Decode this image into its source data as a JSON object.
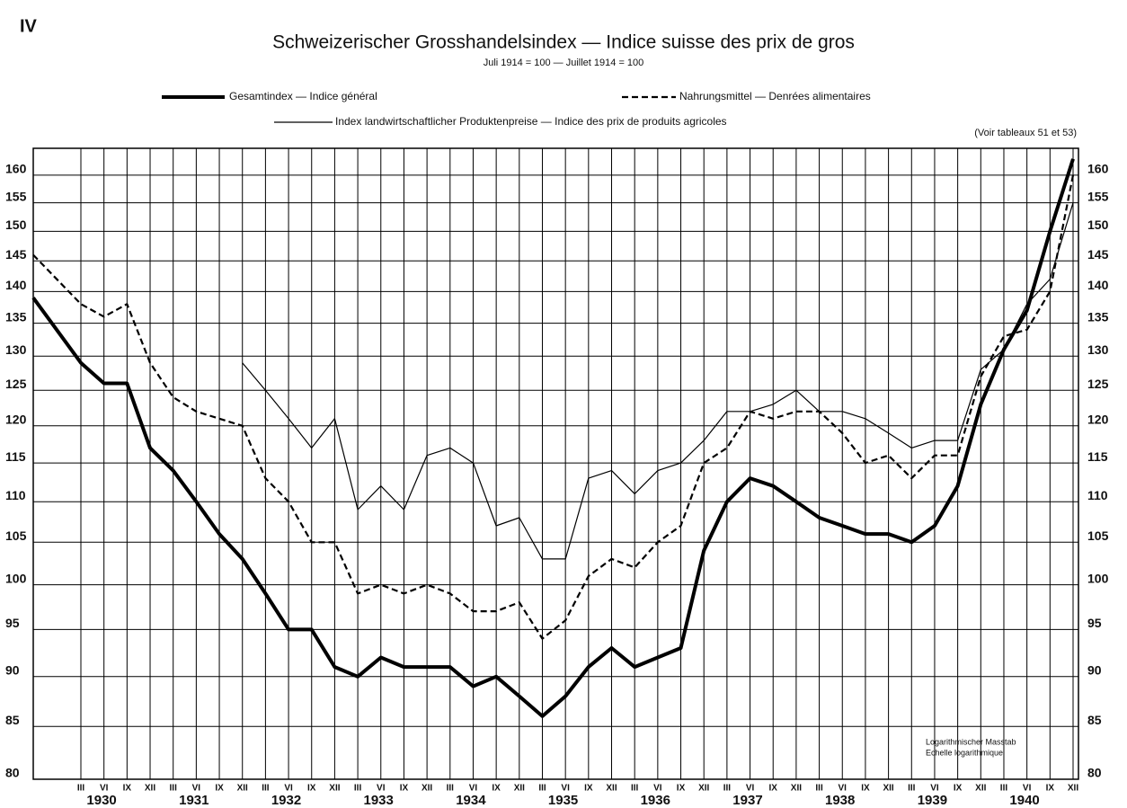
{
  "chart_data": {
    "type": "line",
    "label": "IV",
    "title": "Schweizerischer Grosshandelsindex — Indice suisse des prix de gros",
    "subtitle": "Juli 1914 = 100 — Juillet 1914 = 100",
    "note": "(Voir tableaux 51 et 53)",
    "scale_note": [
      "Logarithmischer Masstab",
      "Echelle logarithmique"
    ],
    "log_scale": true,
    "grid": true,
    "categories": [
      null,
      "III",
      "VI",
      "IX",
      "XII",
      "III",
      "VI",
      "IX",
      "XII",
      "III",
      "VI",
      "IX",
      "XII",
      "III",
      "VI",
      "IX",
      "XII",
      "III",
      "VI",
      "IX",
      "XII",
      "III",
      "VI",
      "IX",
      "XII",
      "III",
      "VI",
      "IX",
      "XII",
      "III",
      "VI",
      "IX",
      "XII",
      "III",
      "VI",
      "IX",
      "XII",
      "III",
      "VI",
      "IX",
      "XII",
      "III",
      "VI",
      "IX",
      "XII"
    ],
    "years": [
      "1930",
      "1931",
      "1932",
      "1933",
      "1934",
      "1935",
      "1936",
      "1937",
      "1938",
      "1939",
      "1940"
    ],
    "ylim": [
      80,
      165
    ],
    "yticks": [
      80,
      85,
      90,
      95,
      100,
      105,
      110,
      115,
      120,
      125,
      130,
      135,
      140,
      145,
      150,
      155,
      160
    ],
    "series": [
      {
        "name": "Gesamtindex — Indice général",
        "color": "#000000",
        "width": 4,
        "dashed": false,
        "values": [
          139,
          129,
          126,
          126,
          117,
          114,
          110,
          106,
          103,
          99,
          95,
          95,
          91,
          90,
          92,
          91,
          91,
          91,
          89,
          90,
          88,
          86,
          88,
          91,
          93,
          91,
          92,
          93,
          104,
          110,
          113,
          112,
          110,
          108,
          107,
          106,
          106,
          105,
          107,
          112,
          123,
          131,
          137,
          150,
          163
        ]
      },
      {
        "name": "Nahrungsmittel — Denrées alimentaires",
        "color": "#000000",
        "width": 2.2,
        "dashed": true,
        "values": [
          146,
          138,
          136,
          138,
          129,
          124,
          122,
          121,
          120,
          113,
          110,
          105,
          105,
          99,
          100,
          99,
          100,
          99,
          97,
          97,
          98,
          94,
          96,
          101,
          103,
          102,
          105,
          107,
          115,
          117,
          122,
          121,
          122,
          122,
          119,
          115,
          116,
          113,
          116,
          116,
          127,
          133,
          134,
          140,
          160
        ]
      },
      {
        "name": "Index landwirtschaftlicher Produktenpreise — Indice des prix de produits agricoles",
        "color": "#000000",
        "width": 1.2,
        "dashed": false,
        "values": [
          null,
          null,
          null,
          null,
          null,
          null,
          null,
          null,
          129,
          125,
          121,
          117,
          121,
          109,
          112,
          109,
          116,
          117,
          115,
          107,
          108,
          103,
          103,
          113,
          114,
          111,
          114,
          115,
          118,
          122,
          122,
          123,
          125,
          122,
          122,
          121,
          119,
          117,
          118,
          118,
          128,
          131,
          138,
          142,
          155
        ]
      }
    ]
  }
}
